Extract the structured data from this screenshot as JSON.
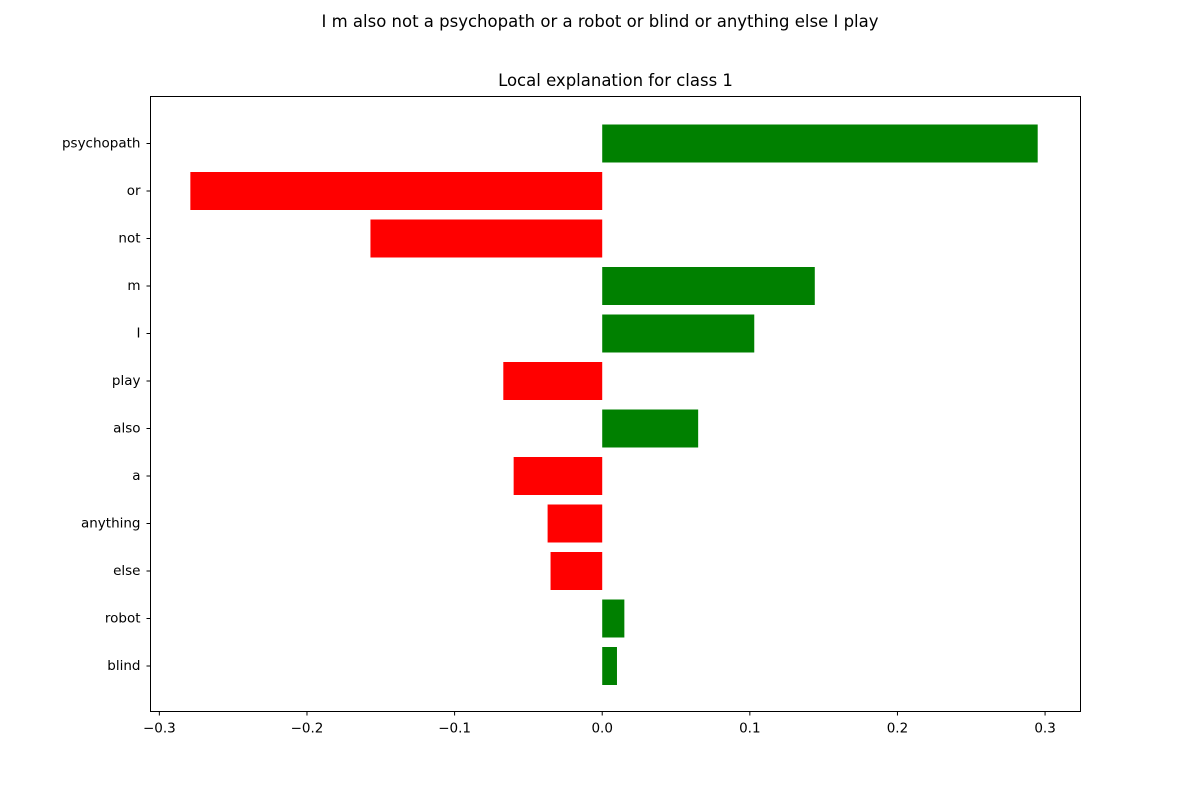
{
  "figure": {
    "suptitle": "I m also not a psychopath or a robot or blind or anything else I play"
  },
  "chart_data": {
    "type": "bar",
    "orientation": "horizontal",
    "title": "Local explanation for class 1",
    "xlabel": "",
    "ylabel": "",
    "categories": [
      "psychopath",
      "or",
      "not",
      "m",
      "I",
      "play",
      "also",
      "a",
      "anything",
      "else",
      "robot",
      "blind"
    ],
    "values": [
      0.295,
      -0.279,
      -0.157,
      0.144,
      0.103,
      -0.067,
      0.065,
      -0.06,
      -0.037,
      -0.035,
      0.015,
      0.01
    ],
    "xlim": [
      -0.306,
      0.324
    ],
    "xticks": [
      -0.3,
      -0.2,
      -0.1,
      0.0,
      0.1,
      0.2,
      0.3
    ],
    "xtick_labels": [
      "−0.3",
      "−0.2",
      "−0.1",
      "0.0",
      "0.1",
      "0.2",
      "0.3"
    ],
    "colors": {
      "positive": "#008000",
      "negative": "#ff0000"
    },
    "grid": false,
    "legend": "none"
  }
}
